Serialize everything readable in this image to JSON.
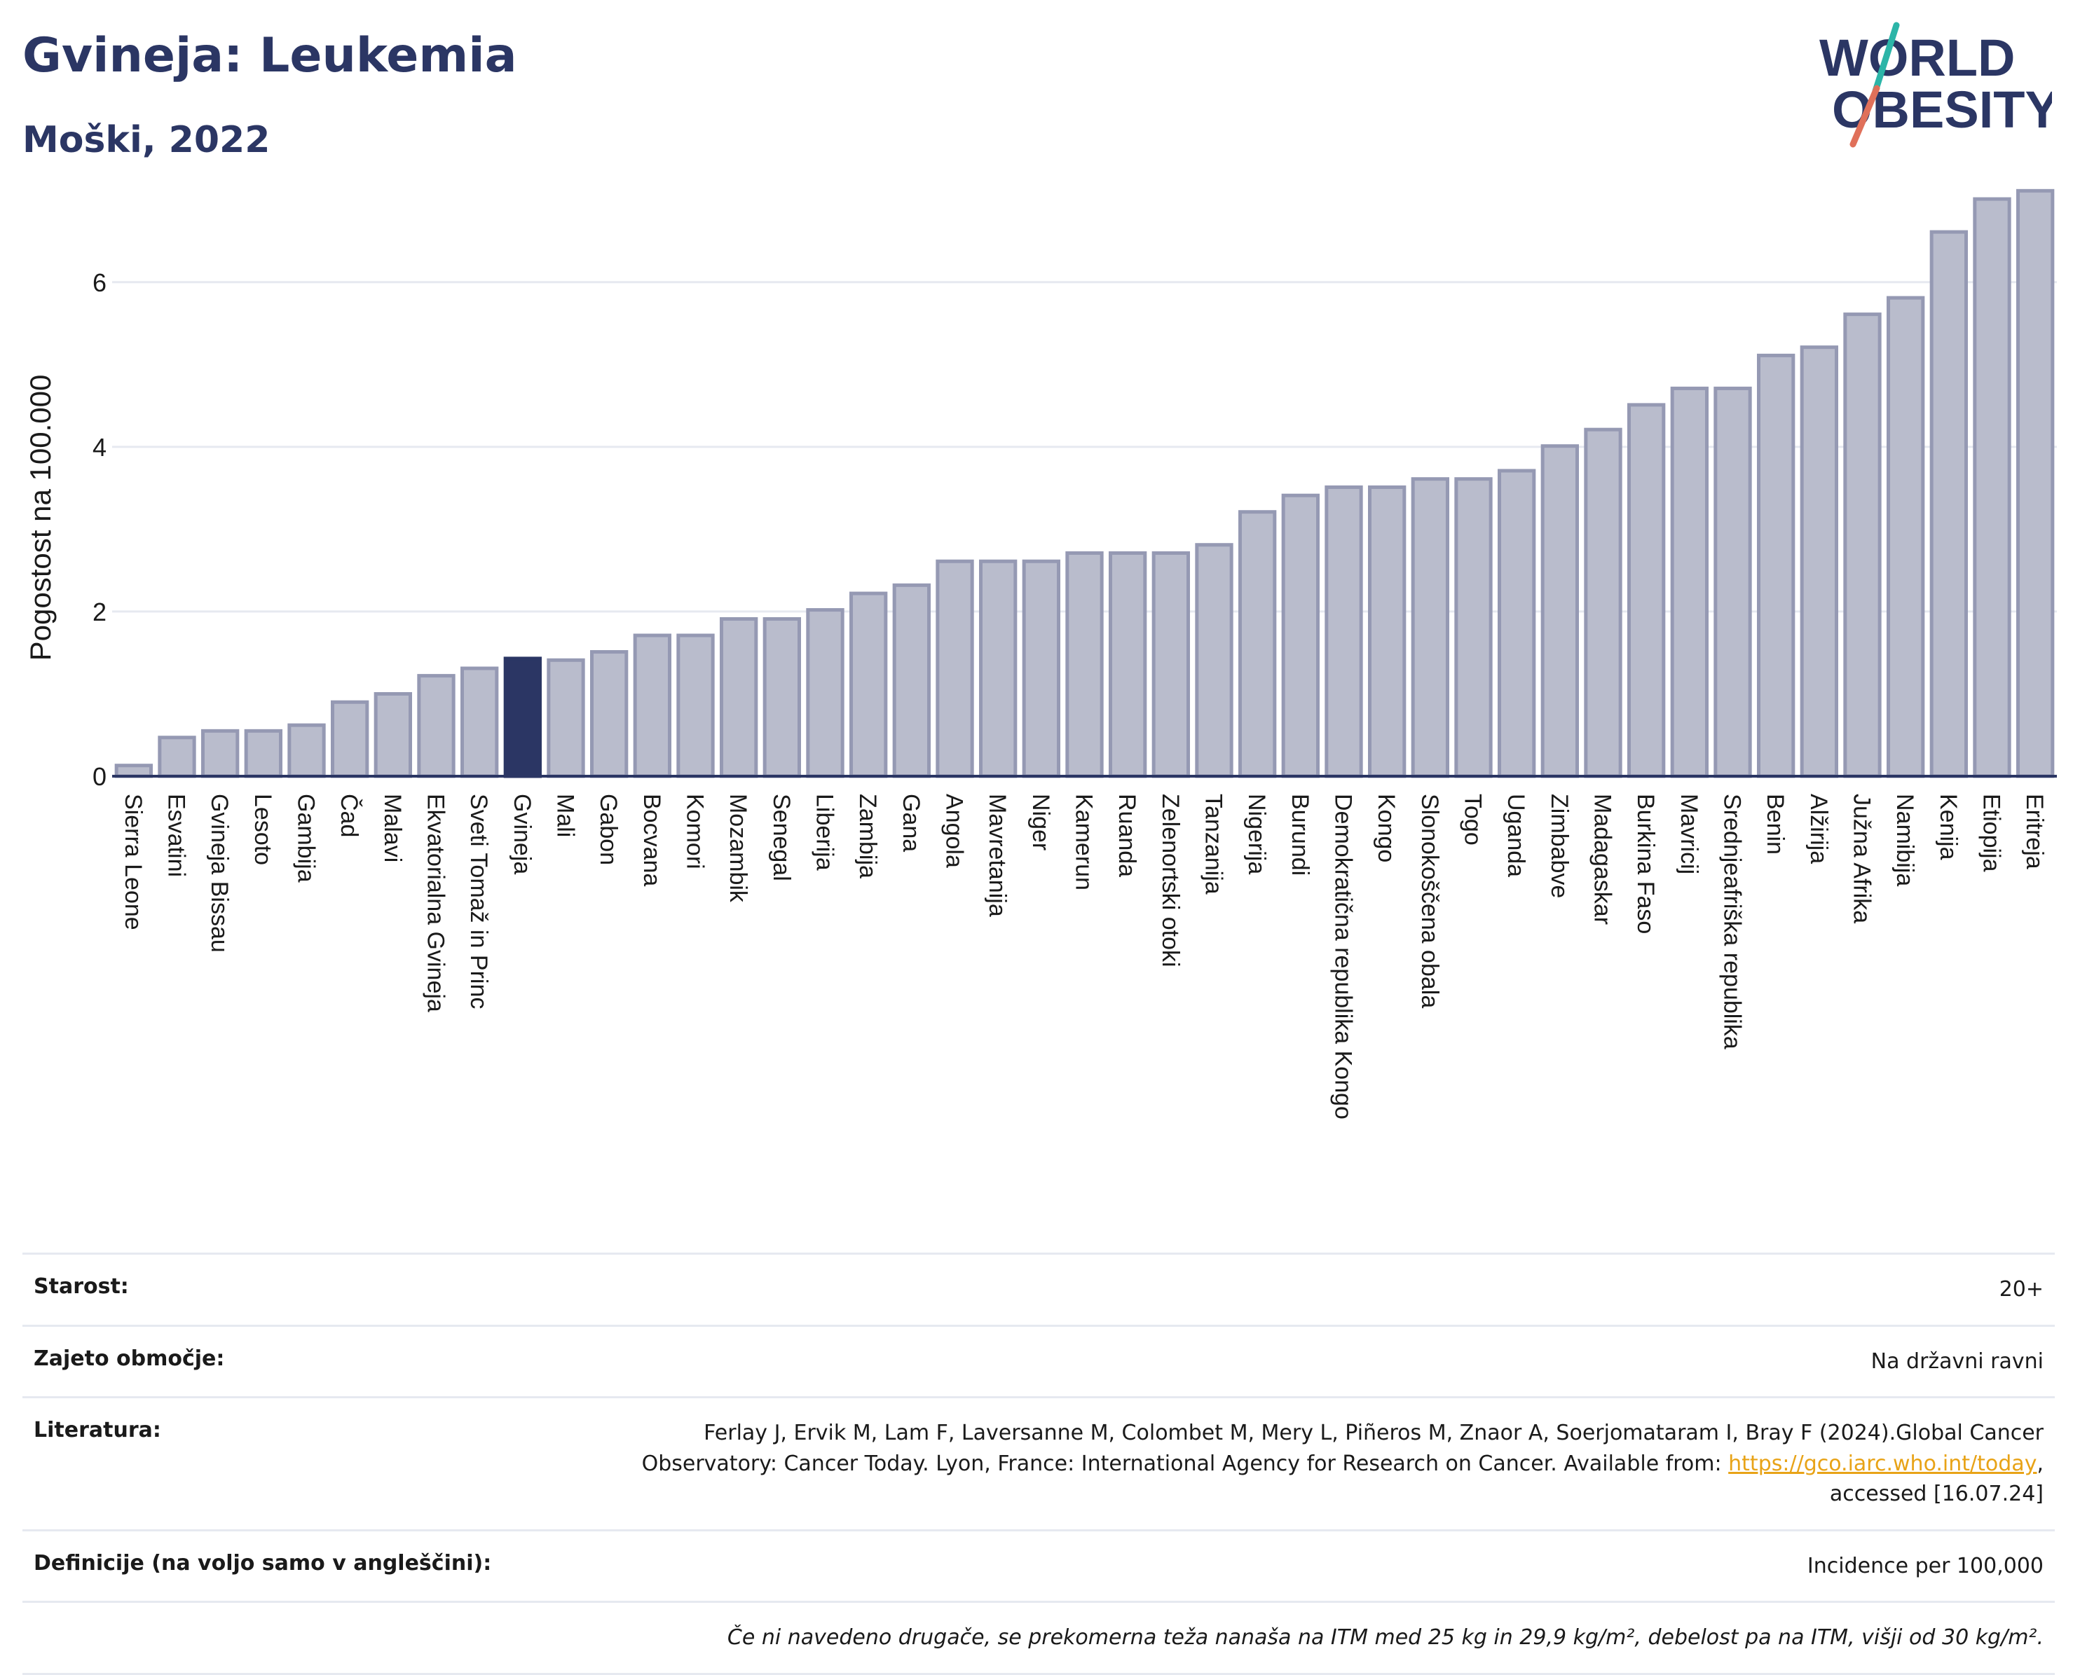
{
  "header": {
    "title": "Gvineja: Leukemia",
    "subtitle": "Moški, 2022"
  },
  "logo": {
    "line1": "WORLD",
    "line2": "OBESITY",
    "colors": {
      "text": "#2b3664",
      "slash_teal": "#2cb5a8",
      "slash_red": "#e0705a"
    }
  },
  "chart_data": {
    "type": "bar",
    "title": "Gvineja: Leukemia",
    "subtitle": "Moški, 2022",
    "xlabel": "",
    "ylabel": "Pogostost na 100.000",
    "ylim": [
      0,
      7.3
    ],
    "yticks": [
      0,
      2,
      4,
      6
    ],
    "grid": true,
    "highlight": "Gvineja",
    "colors": {
      "bar": "#b9bccc",
      "bar_edge": "#9599b3",
      "highlight": "#2b3664",
      "axis": "#2b3664",
      "grid": "#e6e9f0"
    },
    "categories": [
      "Sierra Leone",
      "Esvatini",
      "Gvineja Bissau",
      "Lesoto",
      "Gambija",
      "Čad",
      "Malavi",
      "Ekvatorialna Gvineja",
      "Sveti Tomaž in Princ",
      "Gvineja",
      "Mali",
      "Gabon",
      "Bocvana",
      "Komori",
      "Mozambik",
      "Senegal",
      "Liberija",
      "Zambija",
      "Gana",
      "Angola",
      "Mavretanija",
      "Niger",
      "Kamerun",
      "Ruanda",
      "Zelenortski otoki",
      "Tanzanija",
      "Nigerija",
      "Burundi",
      "Demokratična republika Kongo",
      "Kongo",
      "Slonokoščena obala",
      "Togo",
      "Uganda",
      "Zimbabve",
      "Madagaskar",
      "Burkina Faso",
      "Mavricij",
      "Srednjeafriška republika",
      "Benin",
      "Alžirija",
      "Južna Afrika",
      "Namibija",
      "Kenija",
      "Etiopija",
      "Eritreja"
    ],
    "values": [
      0.13,
      0.47,
      0.55,
      0.55,
      0.62,
      0.9,
      1.0,
      1.22,
      1.31,
      1.43,
      1.41,
      1.51,
      1.71,
      1.71,
      1.91,
      1.91,
      2.02,
      2.22,
      2.32,
      2.61,
      2.61,
      2.61,
      2.71,
      2.71,
      2.71,
      2.81,
      3.21,
      3.41,
      3.51,
      3.51,
      3.61,
      3.61,
      3.71,
      4.01,
      4.21,
      4.51,
      4.71,
      4.71,
      5.11,
      5.21,
      5.61,
      5.81,
      6.61,
      7.01,
      7.11
    ]
  },
  "info": {
    "age_label": "Starost:",
    "age_value": "20+",
    "area_label": "Zajeto območje:",
    "area_value": "Na državni ravni",
    "lit_label": "Literatura:",
    "lit_text_1": "Ferlay J, Ervik M, Lam F, Laversanne M, Colombet M, Mery L, Piñeros M, Znaor A, Soerjomataram I, Bray F (2024).Global Cancer Observatory: Cancer Today. Lyon, France: International Agency for Research on Cancer. Available from: ",
    "lit_link": "https://gco.iarc.who.int/today",
    "lit_text_2": ", accessed [16.07.24]",
    "def_label": "Definicije (na voljo samo v angleščini):",
    "def_value": "Incidence per 100,000",
    "note": "Če ni navedeno drugače, se prekomerna teža nanaša na ITM med 25 kg in 29,9 kg/m², debelost pa na ITM, višji od 30 kg/m²."
  }
}
